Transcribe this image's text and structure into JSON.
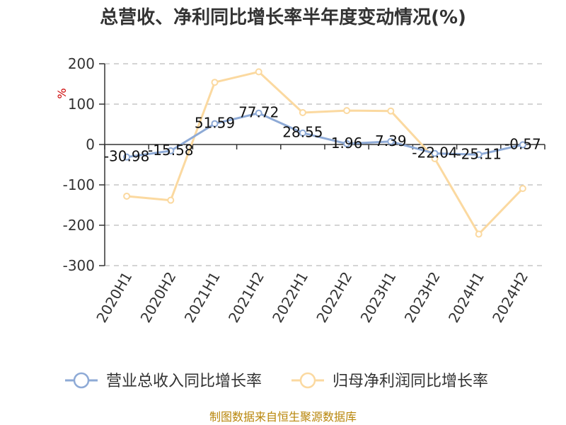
{
  "chart_data": {
    "type": "line",
    "title": "总营收、净利同比增长率半年度变动情况(%)",
    "ylabel": "%",
    "categories": [
      "2020H1",
      "2020H2",
      "2021H1",
      "2021H2",
      "2022H1",
      "2022H2",
      "2023H1",
      "2023H2",
      "2024H1",
      "2024H2"
    ],
    "ylim": [
      -300,
      200
    ],
    "yticks": [
      200,
      100,
      0,
      -100,
      -200,
      -300
    ],
    "grid": true,
    "legend_position": "bottom",
    "series": [
      {
        "name": "营业总收入同比增长率",
        "color": "#8eaad6",
        "values": [
          -30.98,
          -15.58,
          51.59,
          77.72,
          28.55,
          1.96,
          7.39,
          -22.04,
          -25.11,
          -0.57
        ],
        "labels": [
          "-30.98",
          "-15.58",
          "51.59",
          "77.72",
          "28.55",
          "1.96",
          "7.39",
          "-22.04",
          "-25.11",
          "-0.57"
        ]
      },
      {
        "name": "归母净利润同比增长率",
        "color": "#fbd9a0",
        "values": [
          -128,
          -138,
          154,
          180,
          79,
          84,
          83,
          -35,
          -222,
          -109
        ]
      }
    ]
  },
  "source": "制图数据来自恒生聚源数据库"
}
